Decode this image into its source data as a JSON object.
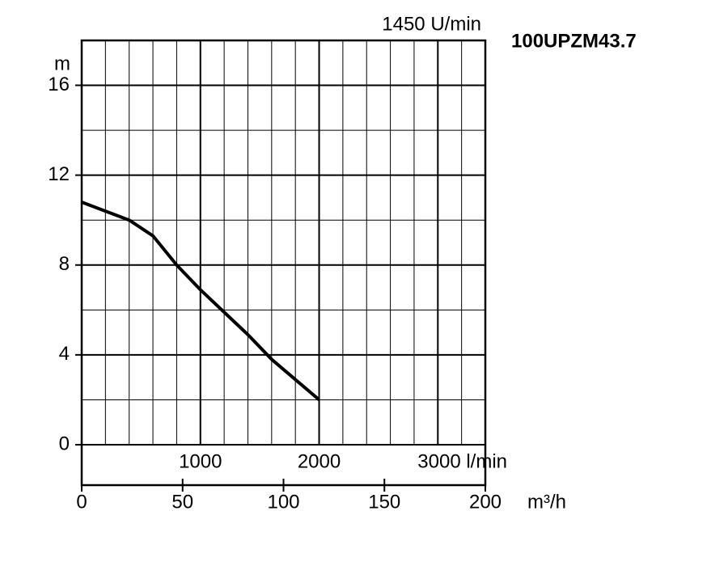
{
  "chart_data": {
    "type": "line",
    "title": "100UPZM43.7",
    "subtitle": "1450 U/min",
    "y_label": "m",
    "x_label": "m³/h",
    "ylim": [
      -1.8,
      18
    ],
    "yticks": [
      0,
      4,
      8,
      12,
      16
    ],
    "minor_yticks": [
      2,
      6,
      10,
      14,
      18
    ],
    "xlim": [
      0,
      200
    ],
    "xticks": [
      0,
      50,
      100,
      150,
      200
    ],
    "x2lim": [
      0,
      3400
    ],
    "x2ticks": [
      1000,
      2000,
      {
        "value": 3000,
        "label": "3000 l/min"
      }
    ],
    "minor_x2ticks": [
      200,
      400,
      600,
      800,
      1200,
      1400,
      1600,
      1800,
      2200,
      2400,
      2600,
      2800,
      3200
    ],
    "grid": true,
    "series": [
      {
        "color": "#000000",
        "axis": "x2",
        "x": [
          0,
          200,
          400,
          600,
          800,
          1000,
          1200,
          1400,
          1600,
          1800,
          2000
        ],
        "values": [
          10.8,
          10.4,
          10.0,
          9.3,
          8.0,
          6.9,
          5.9,
          4.9,
          3.8,
          2.9,
          2.0
        ]
      }
    ]
  }
}
